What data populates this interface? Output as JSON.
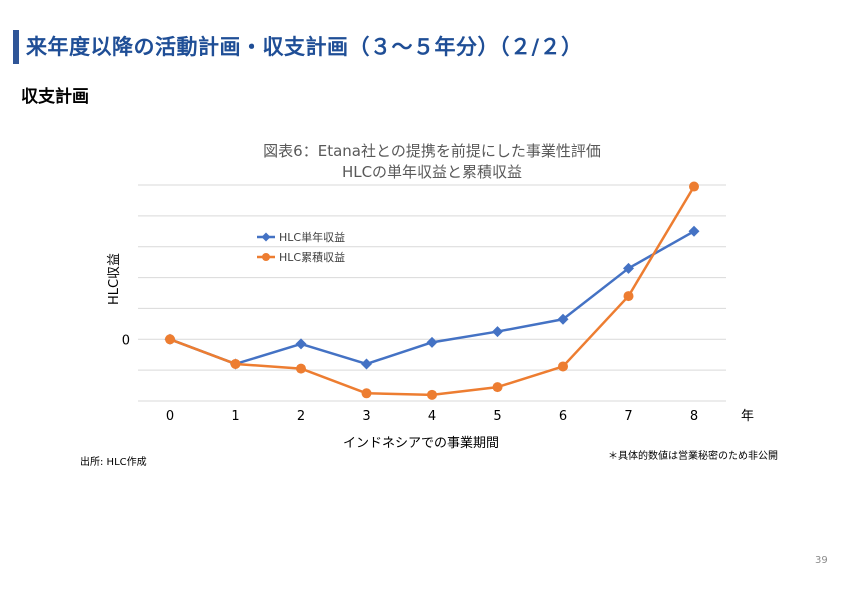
{
  "slide": {
    "title": "来年度以降の活動計画・収支計画（３～５年分）（２/２）",
    "section_heading": "収支計画",
    "source": "出所: HLC作成",
    "note": "＊具体的数値は営業秘密のため非公開",
    "page_number": "39"
  },
  "colors": {
    "title": "#1f4e96",
    "accent_bar": "#2f5597",
    "series_single": "#4472c4",
    "series_cumulative": "#ed7d31",
    "grid": "#d9d9d9"
  },
  "chart_data": {
    "type": "line",
    "title": "図表6：Etana社との提携を前提にした事業性評価",
    "subtitle": "HLCの単年収益と累積収益",
    "xlabel": "インドネシアでの事業期間",
    "ylabel": "HLC収益",
    "x_unit": "年",
    "categories": [
      "0",
      "1",
      "2",
      "3",
      "4",
      "5",
      "6",
      "7",
      "8"
    ],
    "y_tick_labels": [
      {
        "value": 0,
        "label": "0"
      }
    ],
    "ylim": [
      -2,
      5
    ],
    "grid": true,
    "legend_position": "upper-left",
    "series": [
      {
        "name": "HLC単年収益",
        "marker": "diamond",
        "color": "#4472c4",
        "values": [
          0,
          -0.8,
          -0.15,
          -0.8,
          -0.1,
          0.25,
          0.65,
          2.3,
          3.5
        ]
      },
      {
        "name": "HLC累積収益",
        "marker": "circle",
        "color": "#ed7d31",
        "values": [
          0,
          -0.8,
          -0.95,
          -1.75,
          -1.8,
          -1.55,
          -0.88,
          1.4,
          4.95
        ]
      }
    ]
  }
}
